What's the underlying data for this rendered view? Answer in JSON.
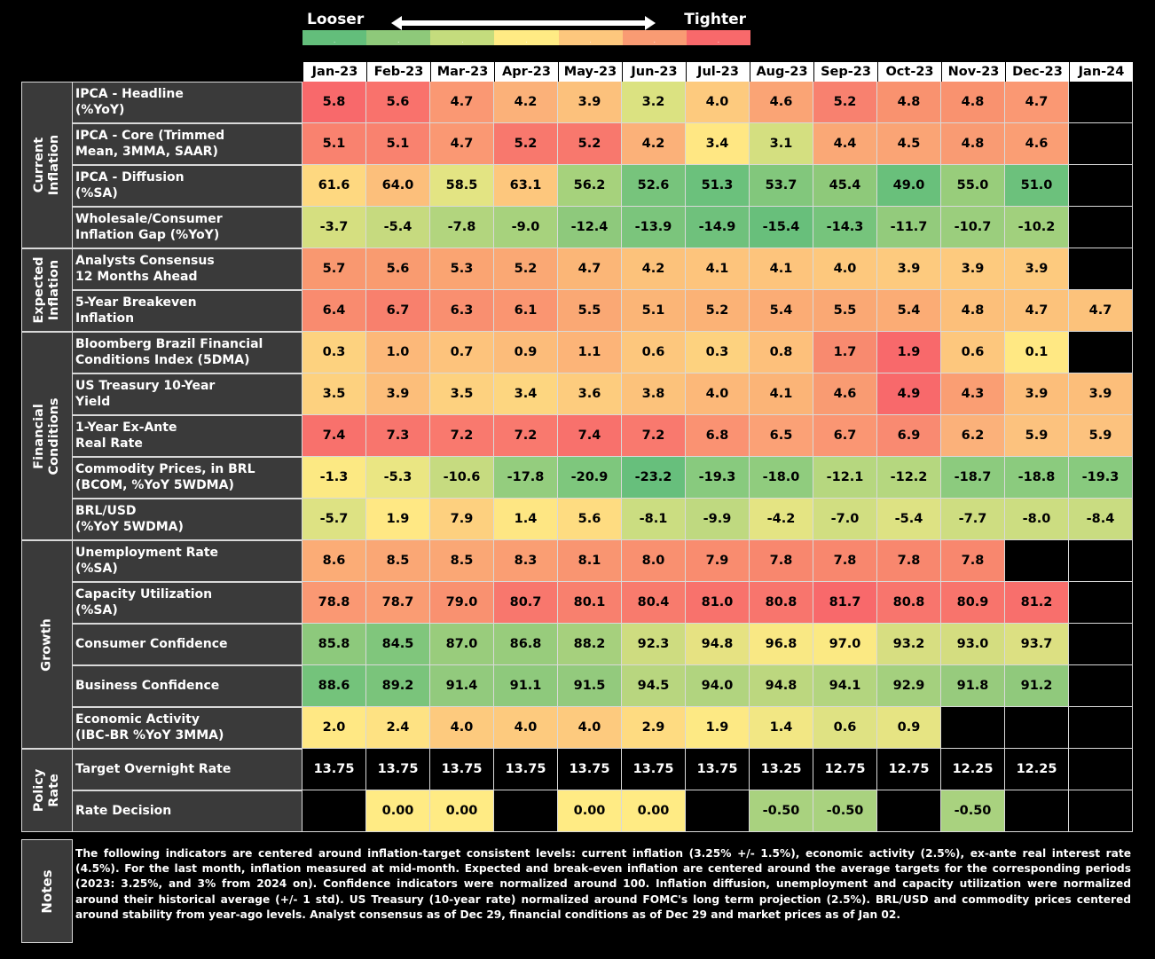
{
  "legend": {
    "left_label": "Looser",
    "right_label": "Tighter",
    "swatches": [
      "#63be7b",
      "#8ec97a",
      "#c4dc7d",
      "#ffeb84",
      "#fdc77d",
      "#f99b73",
      "#f8696b"
    ]
  },
  "months": [
    "Jan-23",
    "Feb-23",
    "Mar-23",
    "Apr-23",
    "May-23",
    "Jun-23",
    "Jul-23",
    "Aug-23",
    "Sep-23",
    "Oct-23",
    "Nov-23",
    "Dec-23",
    "Jan-24"
  ],
  "groups": [
    {
      "name": "Current\nInflation",
      "rows": [
        {
          "label": "IPCA - Headline\n(%YoY)",
          "values": [
            "5.8",
            "5.6",
            "4.7",
            "4.2",
            "3.9",
            "3.2",
            "4.0",
            "4.6",
            "5.2",
            "4.8",
            "4.8",
            "4.7",
            null
          ],
          "colors": [
            "#f8696b",
            "#f9726c",
            "#fa9873",
            "#fbb179",
            "#fcc17c",
            "#dbe281",
            "#fdca7e",
            "#faa475",
            "#f8816f",
            "#f9926f",
            "#f9926f",
            "#fa9873",
            null
          ]
        },
        {
          "label": "IPCA - Core (Trimmed\nMean, 3MMA, SAAR)",
          "values": [
            "5.1",
            "5.1",
            "4.7",
            "5.2",
            "5.2",
            "4.2",
            "3.4",
            "3.1",
            "4.4",
            "4.5",
            "4.8",
            "4.6",
            null
          ],
          "colors": [
            "#f9826f",
            "#f9826f",
            "#fa9873",
            "#f8786d",
            "#f8786d",
            "#fbb179",
            "#ffe783",
            "#d4df80",
            "#faa876",
            "#faa475",
            "#f99b73",
            "#fa9e74",
            null
          ]
        },
        {
          "label": "IPCA - Diffusion\n(%SA)",
          "values": [
            "61.6",
            "64.0",
            "58.5",
            "63.1",
            "56.2",
            "52.6",
            "51.3",
            "53.7",
            "45.4",
            "49.0",
            "55.0",
            "51.0",
            null
          ],
          "colors": [
            "#fed880",
            "#fcbf7b",
            "#e3e483",
            "#fdc77d",
            "#a6d27c",
            "#77c47c",
            "#6bc17c",
            "#82c77c",
            "#8ec97a",
            "#69c07b",
            "#98cd7b",
            "#6cc17c",
            null
          ]
        },
        {
          "label": "Wholesale/Consumer\nInflation Gap (%YoY)",
          "values": [
            "-3.7",
            "-5.4",
            "-7.8",
            "-9.0",
            "-12.4",
            "-13.9",
            "-14.9",
            "-15.4",
            "-14.3",
            "-11.7",
            "-10.7",
            "-10.2",
            null
          ],
          "colors": [
            "#d5df80",
            "#c6da7f",
            "#b2d57e",
            "#a7d27d",
            "#8ec97c",
            "#7bc57c",
            "#6fc17c",
            "#68bf7b",
            "#76c47c",
            "#93cb7c",
            "#9bce7d",
            "#a1d07d",
            null
          ]
        }
      ]
    },
    {
      "name": "Expected\nInflation",
      "rows": [
        {
          "label": "Analysts Consensus\n12 Months Ahead",
          "values": [
            "5.7",
            "5.6",
            "5.3",
            "5.2",
            "4.7",
            "4.2",
            "4.1",
            "4.1",
            "4.0",
            "3.9",
            "3.9",
            "3.9",
            null
          ],
          "colors": [
            "#f99870",
            "#f99b70",
            "#faa472",
            "#faa874",
            "#fbb677",
            "#fcc27b",
            "#fdc47c",
            "#fdc47c",
            "#fdc87d",
            "#fdca7e",
            "#fdca7e",
            "#fdca7e",
            null
          ]
        },
        {
          "label": "5-Year Breakeven\nInflation",
          "values": [
            "6.4",
            "6.7",
            "6.3",
            "6.1",
            "5.5",
            "5.1",
            "5.2",
            "5.4",
            "5.5",
            "5.4",
            "4.8",
            "4.7",
            "4.7"
          ],
          "colors": [
            "#f98b6f",
            "#f8806d",
            "#f98f70",
            "#fa9571",
            "#faa874",
            "#fbb577",
            "#fbb276",
            "#fbac75",
            "#faa874",
            "#fbac75",
            "#fcbf7a",
            "#fcc27b",
            "#fcc27b"
          ]
        }
      ]
    },
    {
      "name": "Financial\nConditions",
      "rows": [
        {
          "label": "Bloomberg Brazil Financial\nConditions Index (5DMA)",
          "values": [
            "0.3",
            "1.0",
            "0.7",
            "0.9",
            "1.1",
            "0.6",
            "0.3",
            "0.8",
            "1.7",
            "1.9",
            "0.6",
            "0.1",
            null
          ],
          "colors": [
            "#fdd27f",
            "#fcb879",
            "#fdc37c",
            "#fcbc7a",
            "#fcb478",
            "#fdc77d",
            "#fdd27f",
            "#fdc07b",
            "#f88a6f",
            "#f8696b",
            "#fdc77d",
            "#ffe883",
            null
          ]
        },
        {
          "label": "US Treasury 10-Year\nYield",
          "values": [
            "3.5",
            "3.9",
            "3.5",
            "3.4",
            "3.6",
            "3.8",
            "4.0",
            "4.1",
            "4.6",
            "4.9",
            "4.3",
            "3.9",
            "3.9"
          ],
          "colors": [
            "#fdd17f",
            "#fcbe7a",
            "#fdd17f",
            "#fdd680",
            "#fdcc7e",
            "#fcc27b",
            "#fcb879",
            "#fbb477",
            "#f99b72",
            "#f8696b",
            "#fa9e73",
            "#fcbe7a",
            "#fcbe7a"
          ]
        },
        {
          "label": "1-Year Ex-Ante\nReal Rate",
          "values": [
            "7.4",
            "7.3",
            "7.2",
            "7.2",
            "7.4",
            "7.2",
            "6.8",
            "6.5",
            "6.7",
            "6.9",
            "6.2",
            "5.9",
            "5.9"
          ],
          "colors": [
            "#f8716c",
            "#f8756d",
            "#f9796e",
            "#f9796e",
            "#f8716c",
            "#f9796e",
            "#fa9272",
            "#fba176",
            "#fa9673",
            "#f98a71",
            "#fbb17a",
            "#fcc27e",
            "#fcc27e"
          ]
        },
        {
          "label": "Commodity Prices, in BRL\n(BCOM, %YoY 5WDMA)",
          "values": [
            "-1.3",
            "-5.3",
            "-10.6",
            "-17.8",
            "-20.9",
            "-23.2",
            "-19.3",
            "-18.0",
            "-12.1",
            "-12.2",
            "-18.7",
            "-18.8",
            "-19.3"
          ],
          "colors": [
            "#fce983",
            "#eae683",
            "#c6db80",
            "#94cd7e",
            "#7ec77d",
            "#67bf7c",
            "#88ca7e",
            "#90cc7e",
            "#b6d77f",
            "#b5d77f",
            "#8ccb7e",
            "#8bcb7e",
            "#88ca7e"
          ]
        },
        {
          "label": "BRL/USD\n(%YoY 5WDMA)",
          "values": [
            "-5.7",
            "1.9",
            "7.9",
            "1.4",
            "5.6",
            "-8.1",
            "-9.9",
            "-4.2",
            "-7.0",
            "-5.4",
            "-7.7",
            "-8.0",
            "-8.4"
          ],
          "colors": [
            "#dde283",
            "#ffe884",
            "#fdd07f",
            "#fee683",
            "#fedc81",
            "#cbdd81",
            "#bfd980",
            "#e4e483",
            "#d1de81",
            "#dde283",
            "#cedd81",
            "#ccdd81",
            "#c9dc81"
          ]
        }
      ]
    },
    {
      "name": "Growth",
      "rows": [
        {
          "label": "Unemployment Rate\n(%SA)",
          "values": [
            "8.6",
            "8.5",
            "8.5",
            "8.3",
            "8.1",
            "8.0",
            "7.9",
            "7.8",
            "7.8",
            "7.8",
            "7.8",
            null,
            null
          ],
          "colors": [
            "#fbac76",
            "#faa775",
            "#faa775",
            "#fa9e73",
            "#f99571",
            "#f99070",
            "#f98c6f",
            "#f8876e",
            "#f8876e",
            "#f8876e",
            "#f8876e",
            null,
            null
          ]
        },
        {
          "label": "Capacity Utilization\n(%SA)",
          "values": [
            "78.8",
            "78.7",
            "79.0",
            "80.7",
            "80.1",
            "80.4",
            "81.0",
            "80.8",
            "81.7",
            "80.8",
            "80.9",
            "81.2",
            null
          ],
          "colors": [
            "#fa9873",
            "#fa9c73",
            "#f99170",
            "#f8776d",
            "#f8806e",
            "#f87b6d",
            "#f8726c",
            "#f8756d",
            "#f8696b",
            "#f8756d",
            "#f8746c",
            "#f86f6c",
            null
          ]
        },
        {
          "label": "Consumer Confidence",
          "values": [
            "85.8",
            "84.5",
            "87.0",
            "86.8",
            "88.2",
            "92.3",
            "94.8",
            "96.8",
            "97.0",
            "93.2",
            "93.0",
            "93.7",
            null
          ],
          "colors": [
            "#8dc97c",
            "#80c67c",
            "#99cc7c",
            "#98cc7c",
            "#a6d07d",
            "#cedc80",
            "#e6e282",
            "#f9e884",
            "#fbe983",
            "#d7de81",
            "#d4dd80",
            "#dce082",
            null
          ]
        },
        {
          "label": "Business Confidence",
          "values": [
            "88.6",
            "89.2",
            "91.4",
            "91.1",
            "91.5",
            "94.5",
            "94.0",
            "94.8",
            "94.1",
            "92.9",
            "91.8",
            "91.2",
            null
          ],
          "colors": [
            "#74c37b",
            "#7ac47b",
            "#92ca7d",
            "#8ec97c",
            "#93ca7d",
            "#b8d67f",
            "#b1d47f",
            "#bcd77f",
            "#b3d57f",
            "#a4d07e",
            "#97cb7d",
            "#90c97c",
            null
          ]
        },
        {
          "label": "Economic Activity\n(IBC-BR %YoY 3MMA)",
          "values": [
            "2.0",
            "2.4",
            "4.0",
            "4.0",
            "4.0",
            "2.9",
            "1.9",
            "1.4",
            "0.6",
            "0.9",
            null,
            null,
            null
          ],
          "colors": [
            "#ffe884",
            "#fee283",
            "#fdca7e",
            "#fdca7e",
            "#fdca7e",
            "#fedb81",
            "#fde984",
            "#f2e784",
            "#dfe283",
            "#e6e483",
            null,
            null,
            null
          ]
        }
      ]
    },
    {
      "name": "Policy\nRate",
      "rows": [
        {
          "label": "Target Overnight Rate",
          "values": [
            "13.75",
            "13.75",
            "13.75",
            "13.75",
            "13.75",
            "13.75",
            "13.75",
            "13.25",
            "12.75",
            "12.75",
            "12.25",
            "12.25",
            null
          ],
          "colors": [
            "#000000",
            "#000000",
            "#000000",
            "#000000",
            "#000000",
            "#000000",
            "#000000",
            "#000000",
            "#000000",
            "#000000",
            "#000000",
            "#000000",
            null
          ]
        },
        {
          "label": "Rate Decision",
          "values": [
            null,
            "0.00",
            "0.00",
            null,
            "0.00",
            "0.00",
            null,
            "-0.50",
            "-0.50",
            null,
            "-0.50",
            null,
            null
          ],
          "colors": [
            null,
            "#ffeb84",
            "#ffeb84",
            null,
            "#ffeb84",
            "#ffeb84",
            null,
            "#a9d27f",
            "#a9d27f",
            null,
            "#a9d27f",
            null,
            null
          ]
        }
      ]
    }
  ],
  "notes": {
    "title": "Notes",
    "text": "The following indicators are centered around inflation-target consistent levels: current inflation (3.25% +/- 1.5%), economic activity (2.5%), ex-ante real interest rate (4.5%). For the last month, inflation measured at mid-month. Expected and break-even inflation are centered around the average targets for the corresponding periods (2023: 3.25%, and 3% from 2024 on). Confidence indicators were normalized around 100. Inflation diffusion, unemployment and capacity utilization were normalized around their historical average (+/- 1 std). US Treasury (10-year rate) normalized around FOMC's long term projection (2.5%). BRL/USD and commodity prices centered around stability from year-ago levels. Analyst consensus as of Dec 29, financial conditions as of Dec 29 and market prices as of Jan 02."
  }
}
